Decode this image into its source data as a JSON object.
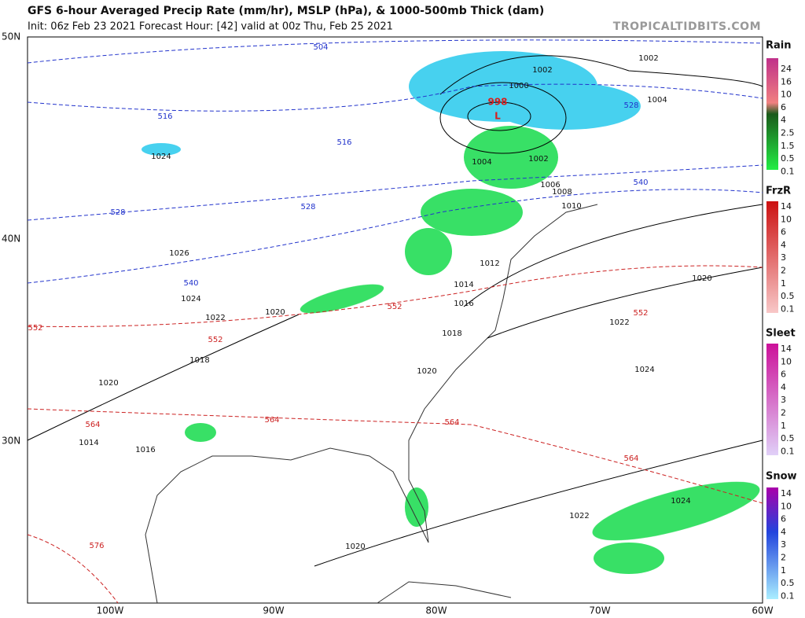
{
  "header": {
    "title": "GFS 6-hour Averaged Precip Rate (mm/hr), MSLP (hPa), & 1000-500mb Thick (dam)",
    "subtitle": "Init: 06z Feb 23 2021   Forecast Hour: [42]   valid at 00z Thu, Feb 25 2021",
    "watermark": "TROPICALTIDBITS.COM"
  },
  "axes": {
    "lat_labels": [
      "50N",
      "40N",
      "30N"
    ],
    "lon_labels": [
      "100W",
      "90W",
      "80W",
      "70W",
      "60W"
    ]
  },
  "legends": [
    {
      "title": "Rain",
      "labels": [
        "24",
        "16",
        "10",
        "6",
        "4",
        "2.5",
        "1.5",
        "0.5",
        "0.1"
      ]
    },
    {
      "title": "FrzR",
      "labels": [
        "14",
        "10",
        "6",
        "4",
        "3",
        "2",
        "1",
        "0.5",
        "0.1"
      ]
    },
    {
      "title": "Sleet",
      "labels": [
        "14",
        "10",
        "6",
        "4",
        "3",
        "2",
        "1",
        "0.5",
        "0.1"
      ]
    },
    {
      "title": "Snow",
      "labels": [
        "14",
        "10",
        "6",
        "4",
        "3",
        "2",
        "1",
        "0.5",
        "0.1"
      ]
    }
  ],
  "map": {
    "low_pressure": {
      "value": "998",
      "symbol": "L"
    },
    "pressure_labels": [
      "1002",
      "1002",
      "1000",
      "1004",
      "1004",
      "1002",
      "1006",
      "1008",
      "1010",
      "1012",
      "1014",
      "1016",
      "1020",
      "1022",
      "1018",
      "1020",
      "1024",
      "1024",
      "1022",
      "1020",
      "1024",
      "1026",
      "1024",
      "1022",
      "1020",
      "1018",
      "1020",
      "1014",
      "1016"
    ],
    "thickness_cold_labels": [
      "504",
      "516",
      "516",
      "528",
      "528",
      "528",
      "540",
      "540"
    ],
    "thickness_warm_labels": [
      "552",
      "552",
      "552",
      "552",
      "564",
      "564",
      "564",
      "564",
      "576"
    ]
  }
}
